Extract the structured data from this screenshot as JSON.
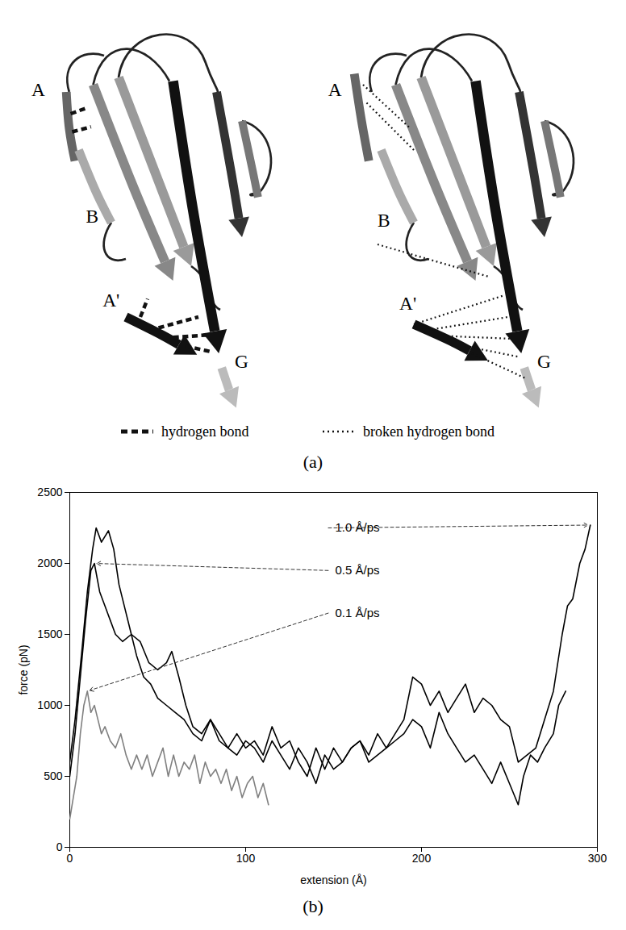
{
  "diagram": {
    "panels": [
      {
        "labels": [
          "A",
          "B",
          "A'",
          "G"
        ]
      },
      {
        "labels": [
          "A",
          "B",
          "A'",
          "G"
        ]
      }
    ],
    "legend": [
      {
        "label": "hydrogen bond",
        "line_style": "dashed"
      },
      {
        "label": "broken hydrogen bond",
        "line_style": "dotted"
      }
    ],
    "caption": "(a)"
  },
  "chart_data": {
    "type": "line",
    "caption": "(b)",
    "x_label": "extension (Å)",
    "y_label": "force (pN)",
    "xlim": [
      0,
      300
    ],
    "xticks": [
      0,
      100,
      200,
      300
    ],
    "ylim": [
      0,
      2500
    ],
    "yticks": [
      0,
      500,
      1000,
      1500,
      2000,
      2500
    ],
    "grid": false,
    "series": [
      {
        "name": "1.0 Å/ps",
        "color": "#000000",
        "x": [
          0,
          3,
          7,
          10,
          13,
          15,
          18,
          22,
          25,
          28,
          32,
          35,
          40,
          45,
          50,
          55,
          58,
          62,
          66,
          70,
          75,
          80,
          85,
          90,
          95,
          100,
          105,
          110,
          115,
          120,
          125,
          130,
          135,
          140,
          145,
          150,
          155,
          160,
          165,
          170,
          175,
          180,
          185,
          190,
          195,
          200,
          205,
          210,
          215,
          220,
          225,
          230,
          235,
          240,
          245,
          250,
          255,
          260,
          265,
          270,
          275,
          280,
          283,
          286,
          290,
          293,
          296
        ],
        "values": [
          600,
          900,
          1400,
          1800,
          2100,
          2250,
          2150,
          2230,
          2100,
          1850,
          1650,
          1500,
          1450,
          1300,
          1250,
          1300,
          1380,
          1200,
          1000,
          850,
          800,
          900,
          750,
          700,
          800,
          700,
          750,
          650,
          850,
          700,
          750,
          600,
          500,
          700,
          550,
          700,
          600,
          700,
          750,
          650,
          800,
          700,
          800,
          900,
          1200,
          1150,
          1000,
          1100,
          950,
          1050,
          1150,
          950,
          1050,
          1000,
          900,
          850,
          600,
          650,
          700,
          900,
          1100,
          1500,
          1700,
          1750,
          2000,
          2100,
          2270
        ]
      },
      {
        "name": "0.5 Å/ps",
        "color": "#000000",
        "x": [
          0,
          3,
          6,
          9,
          12,
          14,
          17,
          20,
          23,
          26,
          30,
          35,
          38,
          42,
          46,
          50,
          55,
          60,
          65,
          70,
          75,
          80,
          85,
          90,
          95,
          100,
          105,
          110,
          115,
          120,
          125,
          130,
          135,
          140,
          145,
          150,
          155,
          160,
          165,
          170,
          175,
          180,
          185,
          190,
          195,
          200,
          205,
          210,
          215,
          220,
          225,
          230,
          235,
          240,
          245,
          250,
          255,
          258,
          262,
          266,
          270,
          275,
          278,
          282
        ],
        "values": [
          500,
          800,
          1200,
          1600,
          1950,
          2000,
          1800,
          1700,
          1600,
          1500,
          1450,
          1500,
          1350,
          1200,
          1150,
          1050,
          1000,
          950,
          900,
          800,
          750,
          900,
          800,
          700,
          650,
          750,
          700,
          600,
          750,
          650,
          550,
          700,
          600,
          450,
          650,
          550,
          600,
          700,
          750,
          600,
          650,
          700,
          750,
          800,
          900,
          850,
          700,
          950,
          800,
          700,
          600,
          650,
          550,
          450,
          600,
          450,
          300,
          500,
          650,
          600,
          700,
          800,
          1000,
          1100
        ]
      },
      {
        "name": "0.1 Å/ps",
        "color": "#808080",
        "x": [
          0,
          2,
          4,
          6,
          8,
          10,
          12,
          14,
          16,
          18,
          20,
          23,
          26,
          29,
          32,
          35,
          38,
          41,
          44,
          47,
          50,
          53,
          56,
          59,
          62,
          65,
          68,
          71,
          74,
          77,
          80,
          83,
          86,
          89,
          92,
          95,
          98,
          101,
          104,
          107,
          110,
          113
        ],
        "values": [
          200,
          350,
          500,
          800,
          1000,
          1100,
          950,
          1000,
          900,
          800,
          850,
          750,
          700,
          800,
          650,
          550,
          650,
          550,
          650,
          500,
          600,
          700,
          500,
          650,
          500,
          600,
          550,
          650,
          450,
          600,
          500,
          550,
          450,
          550,
          400,
          500,
          350,
          450,
          500,
          350,
          450,
          300
        ]
      }
    ]
  }
}
